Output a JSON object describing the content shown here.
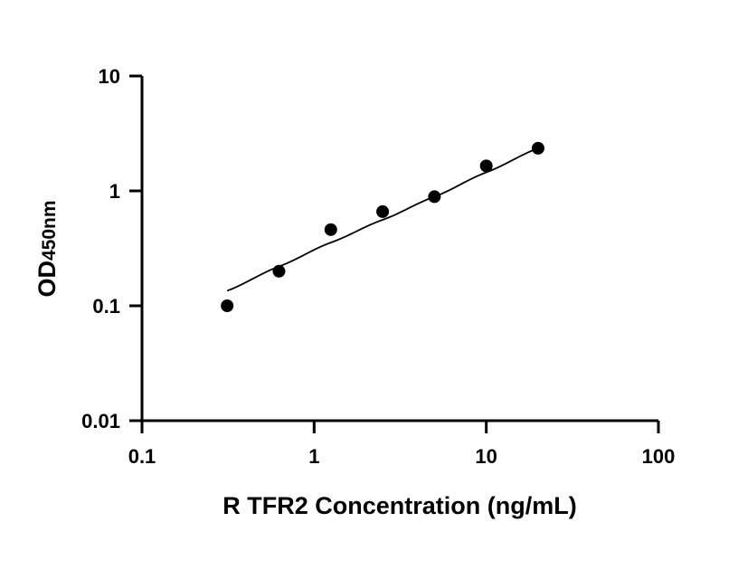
{
  "chart_data": {
    "type": "scatter",
    "x": [
      0.3125,
      0.625,
      1.25,
      2.5,
      5,
      10,
      20
    ],
    "y": [
      0.1,
      0.2,
      0.46,
      0.66,
      0.89,
      1.65,
      2.35
    ],
    "fit_curve": {
      "x": [
        0.3125,
        0.625,
        1.25,
        2.5,
        5,
        10,
        20
      ],
      "y": [
        0.135,
        0.22,
        0.355,
        0.56,
        0.89,
        1.45,
        2.35
      ]
    },
    "xlabel": "R TFR2 Concentration (ng/mL)",
    "ylabel_main": "OD",
    "ylabel_sub": "450nm",
    "xscale": "log",
    "yscale": "log",
    "xlim": [
      0.1,
      100
    ],
    "ylim": [
      0.01,
      10
    ],
    "xticks": [
      0.1,
      1,
      10,
      100
    ],
    "xtick_labels": [
      "0.1",
      "1",
      "10",
      "100"
    ],
    "yticks": [
      0.01,
      0.1,
      1,
      10
    ],
    "ytick_labels": [
      "0.01",
      "0.1",
      "1",
      "10"
    ],
    "grid": false,
    "point_color": "#000000",
    "line_color": "#000000"
  }
}
